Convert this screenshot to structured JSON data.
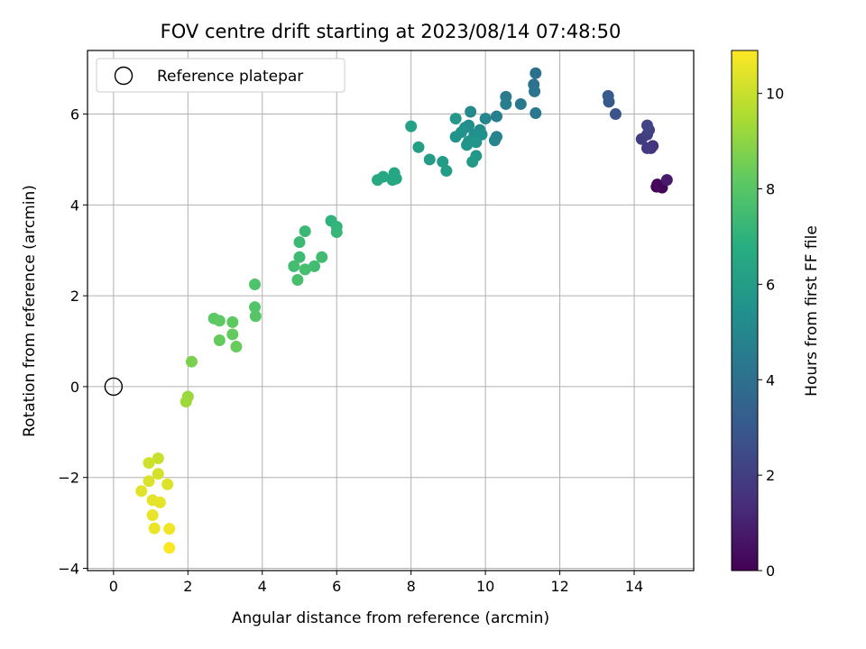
{
  "chart_data": {
    "type": "scatter",
    "title": "FOV centre drift starting at 2023/08/14 07:48:50",
    "xlabel": "Angular distance from reference (arcmin)",
    "ylabel": "Rotation from reference (arcmin)",
    "xlim": [
      -0.7,
      15.6
    ],
    "ylim": [
      -4.05,
      7.4
    ],
    "xticks": [
      0,
      2,
      4,
      6,
      8,
      10,
      12,
      14
    ],
    "yticks": [
      -4,
      -2,
      0,
      2,
      4,
      6
    ],
    "grid": true,
    "legend": {
      "placement": "top-left",
      "entries": [
        "Reference platepar"
      ]
    },
    "reference_point": {
      "x": 0,
      "y": 0
    },
    "colorbar": {
      "label": "Hours from first FF file",
      "range": [
        0,
        10.9
      ],
      "ticks": [
        0,
        2,
        4,
        6,
        8,
        10
      ],
      "colormap": "viridis"
    },
    "points": [
      {
        "x": 14.6,
        "y": 4.4,
        "c": 0.1
      },
      {
        "x": 14.75,
        "y": 4.38,
        "c": 0.15
      },
      {
        "x": 14.62,
        "y": 4.45,
        "c": 0.2
      },
      {
        "x": 14.88,
        "y": 4.55,
        "c": 0.8
      },
      {
        "x": 14.45,
        "y": 5.25,
        "c": 1.5
      },
      {
        "x": 14.5,
        "y": 5.3,
        "c": 1.6
      },
      {
        "x": 14.35,
        "y": 5.25,
        "c": 1.8
      },
      {
        "x": 14.2,
        "y": 5.45,
        "c": 1.9
      },
      {
        "x": 14.35,
        "y": 5.55,
        "c": 2.0
      },
      {
        "x": 14.4,
        "y": 5.65,
        "c": 2.1
      },
      {
        "x": 14.35,
        "y": 5.75,
        "c": 2.2
      },
      {
        "x": 13.5,
        "y": 6.0,
        "c": 2.8
      },
      {
        "x": 13.32,
        "y": 6.27,
        "c": 3.0
      },
      {
        "x": 13.3,
        "y": 6.4,
        "c": 3.1
      },
      {
        "x": 11.35,
        "y": 6.9,
        "c": 4.0
      },
      {
        "x": 11.3,
        "y": 6.65,
        "c": 4.1
      },
      {
        "x": 11.32,
        "y": 6.5,
        "c": 4.2
      },
      {
        "x": 11.35,
        "y": 6.02,
        "c": 4.3
      },
      {
        "x": 10.95,
        "y": 6.22,
        "c": 4.4
      },
      {
        "x": 10.55,
        "y": 6.38,
        "c": 4.5
      },
      {
        "x": 10.55,
        "y": 6.22,
        "c": 4.6
      },
      {
        "x": 10.3,
        "y": 5.95,
        "c": 4.7
      },
      {
        "x": 10.3,
        "y": 5.5,
        "c": 4.8
      },
      {
        "x": 10.25,
        "y": 5.42,
        "c": 4.9
      },
      {
        "x": 10.0,
        "y": 5.9,
        "c": 5.0
      },
      {
        "x": 9.6,
        "y": 6.05,
        "c": 5.1
      },
      {
        "x": 9.85,
        "y": 5.65,
        "c": 5.2
      },
      {
        "x": 9.55,
        "y": 5.75,
        "c": 5.3
      },
      {
        "x": 9.45,
        "y": 5.7,
        "c": 5.35
      },
      {
        "x": 9.7,
        "y": 5.55,
        "c": 5.4
      },
      {
        "x": 9.9,
        "y": 5.55,
        "c": 5.45
      },
      {
        "x": 9.35,
        "y": 5.6,
        "c": 5.5
      },
      {
        "x": 9.2,
        "y": 5.5,
        "c": 5.55
      },
      {
        "x": 9.55,
        "y": 5.4,
        "c": 5.6
      },
      {
        "x": 9.75,
        "y": 5.38,
        "c": 5.65
      },
      {
        "x": 9.5,
        "y": 5.32,
        "c": 5.7
      },
      {
        "x": 9.2,
        "y": 5.9,
        "c": 5.75
      },
      {
        "x": 9.75,
        "y": 5.08,
        "c": 5.8
      },
      {
        "x": 9.65,
        "y": 4.95,
        "c": 5.85
      },
      {
        "x": 8.85,
        "y": 4.95,
        "c": 5.9
      },
      {
        "x": 8.5,
        "y": 5.0,
        "c": 5.95
      },
      {
        "x": 8.95,
        "y": 4.75,
        "c": 6.0
      },
      {
        "x": 8.2,
        "y": 5.27,
        "c": 6.1
      },
      {
        "x": 8.0,
        "y": 5.73,
        "c": 6.2
      },
      {
        "x": 7.55,
        "y": 4.7,
        "c": 6.4
      },
      {
        "x": 7.6,
        "y": 4.58,
        "c": 6.45
      },
      {
        "x": 7.5,
        "y": 4.55,
        "c": 6.5
      },
      {
        "x": 7.25,
        "y": 4.62,
        "c": 6.55
      },
      {
        "x": 7.1,
        "y": 4.55,
        "c": 6.6
      },
      {
        "x": 5.85,
        "y": 3.65,
        "c": 7.0
      },
      {
        "x": 6.0,
        "y": 3.52,
        "c": 7.1
      },
      {
        "x": 6.0,
        "y": 3.4,
        "c": 7.2
      },
      {
        "x": 5.15,
        "y": 3.42,
        "c": 7.3
      },
      {
        "x": 5.0,
        "y": 3.18,
        "c": 7.35
      },
      {
        "x": 5.0,
        "y": 2.85,
        "c": 7.4
      },
      {
        "x": 5.6,
        "y": 2.85,
        "c": 7.45
      },
      {
        "x": 5.4,
        "y": 2.65,
        "c": 7.5
      },
      {
        "x": 4.85,
        "y": 2.65,
        "c": 7.55
      },
      {
        "x": 5.15,
        "y": 2.58,
        "c": 7.6
      },
      {
        "x": 4.95,
        "y": 2.35,
        "c": 7.65
      },
      {
        "x": 3.8,
        "y": 2.25,
        "c": 7.8
      },
      {
        "x": 3.8,
        "y": 1.75,
        "c": 7.9
      },
      {
        "x": 3.82,
        "y": 1.55,
        "c": 7.95
      },
      {
        "x": 2.7,
        "y": 1.5,
        "c": 8.1
      },
      {
        "x": 2.85,
        "y": 1.45,
        "c": 8.15
      },
      {
        "x": 3.2,
        "y": 1.42,
        "c": 8.2
      },
      {
        "x": 3.2,
        "y": 1.15,
        "c": 8.25
      },
      {
        "x": 2.85,
        "y": 1.02,
        "c": 8.3
      },
      {
        "x": 3.3,
        "y": 0.88,
        "c": 8.35
      },
      {
        "x": 2.1,
        "y": 0.55,
        "c": 8.7
      },
      {
        "x": 2.0,
        "y": -0.22,
        "c": 9.2
      },
      {
        "x": 1.95,
        "y": -0.33,
        "c": 9.3
      },
      {
        "x": 1.2,
        "y": -1.58,
        "c": 10.0
      },
      {
        "x": 0.95,
        "y": -1.68,
        "c": 10.1
      },
      {
        "x": 1.2,
        "y": -1.92,
        "c": 10.2
      },
      {
        "x": 0.95,
        "y": -2.08,
        "c": 10.3
      },
      {
        "x": 1.45,
        "y": -2.15,
        "c": 10.35
      },
      {
        "x": 0.75,
        "y": -2.3,
        "c": 10.4
      },
      {
        "x": 1.05,
        "y": -2.5,
        "c": 10.45
      },
      {
        "x": 1.25,
        "y": -2.55,
        "c": 10.5
      },
      {
        "x": 1.05,
        "y": -2.83,
        "c": 10.55
      },
      {
        "x": 1.1,
        "y": -3.12,
        "c": 10.6
      },
      {
        "x": 1.5,
        "y": -3.13,
        "c": 10.7
      },
      {
        "x": 1.5,
        "y": -3.55,
        "c": 10.85
      }
    ]
  }
}
